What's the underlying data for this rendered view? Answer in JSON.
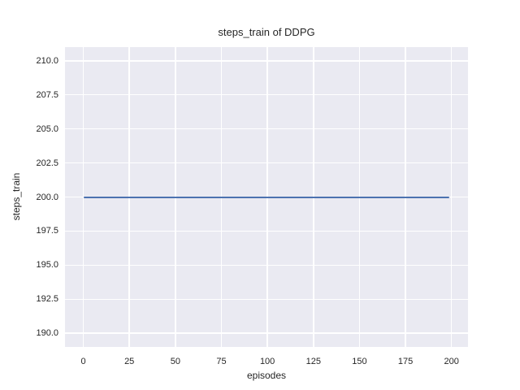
{
  "figure": {
    "background": "#ffffff"
  },
  "chart_data": {
    "type": "line",
    "title": "steps_train of DDPG",
    "xlabel": "episodes",
    "ylabel": "steps_train",
    "xlim": [
      -9.95,
      208.95
    ],
    "ylim": [
      189,
      211
    ],
    "x_ticks": [
      0,
      25,
      50,
      75,
      100,
      125,
      150,
      175,
      200
    ],
    "x_tick_labels": [
      "0",
      "25",
      "50",
      "75",
      "100",
      "125",
      "150",
      "175",
      "200"
    ],
    "y_ticks": [
      190,
      192.5,
      195,
      197.5,
      200,
      202.5,
      205,
      207.5,
      210
    ],
    "y_tick_labels": [
      "190.0",
      "192.5",
      "195.0",
      "197.5",
      "200.0",
      "202.5",
      "205.0",
      "207.5",
      "210.0"
    ],
    "grid": true,
    "legend": null,
    "plot_bg_color": "#eaeaf2",
    "grid_color": "#ffffff",
    "text_color": "#262626",
    "series": [
      {
        "name": "steps_train",
        "color": "#4c72b0",
        "constant_value": 200,
        "x": [
          0,
          199
        ],
        "y": [
          200,
          200
        ]
      }
    ]
  }
}
